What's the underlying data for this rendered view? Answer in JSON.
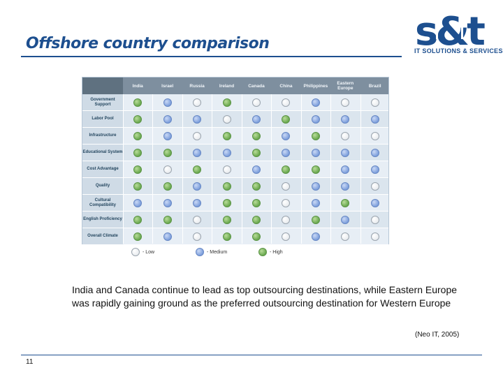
{
  "slide": {
    "title": "Offshore country comparison",
    "logo_text": "s&t",
    "logo_tagline": "IT SOLUTIONS & SERVICES",
    "body": "India and Canada continue to lead as top outsourcing destinations, while Eastern Europe was rapidly gaining ground as the preferred outsourcing destination for Western Europe",
    "source": "(Neo IT, 2005)",
    "page_number": "11"
  },
  "table": {
    "columns": [
      "India",
      "Israel",
      "Russia",
      "Ireland",
      "Canada",
      "China",
      "Philippines",
      "Eastern Europe",
      "Brazil"
    ],
    "rows": [
      {
        "label": "Government Support",
        "ratings": [
          "high",
          "medium",
          "low",
          "high",
          "low",
          "low",
          "medium",
          "low",
          "low"
        ]
      },
      {
        "label": "Labor Pool",
        "ratings": [
          "high",
          "medium",
          "medium",
          "low",
          "medium",
          "high",
          "medium",
          "medium",
          "medium"
        ]
      },
      {
        "label": "Infrastructure",
        "ratings": [
          "high",
          "medium",
          "low",
          "high",
          "high",
          "medium",
          "high",
          "low",
          "low"
        ]
      },
      {
        "label": "Educational System",
        "ratings": [
          "high",
          "high",
          "medium",
          "medium",
          "high",
          "medium",
          "medium",
          "medium",
          "medium"
        ]
      },
      {
        "label": "Cost Advantage",
        "ratings": [
          "high",
          "low",
          "high",
          "low",
          "medium",
          "high",
          "high",
          "medium",
          "medium"
        ]
      },
      {
        "label": "Quality",
        "ratings": [
          "high",
          "high",
          "medium",
          "high",
          "high",
          "low",
          "medium",
          "medium",
          "low"
        ]
      },
      {
        "label": "Cultural Compatibility",
        "ratings": [
          "medium",
          "medium",
          "medium",
          "high",
          "high",
          "low",
          "medium",
          "high",
          "medium"
        ]
      },
      {
        "label": "English Proficiency",
        "ratings": [
          "high",
          "high",
          "low",
          "high",
          "high",
          "low",
          "high",
          "medium",
          "low"
        ]
      },
      {
        "label": "Overall Climate",
        "ratings": [
          "high",
          "medium",
          "low",
          "high",
          "high",
          "low",
          "medium",
          "low",
          "low"
        ]
      }
    ]
  },
  "legend": [
    {
      "level": "low",
      "label": "- Low"
    },
    {
      "level": "medium",
      "label": "- Medium"
    },
    {
      "level": "high",
      "label": "- High"
    }
  ],
  "colors": {
    "title": "#1d4f8f",
    "low": "#f4f6f8",
    "medium": "#7d9fdc",
    "high": "#6aa84f"
  }
}
